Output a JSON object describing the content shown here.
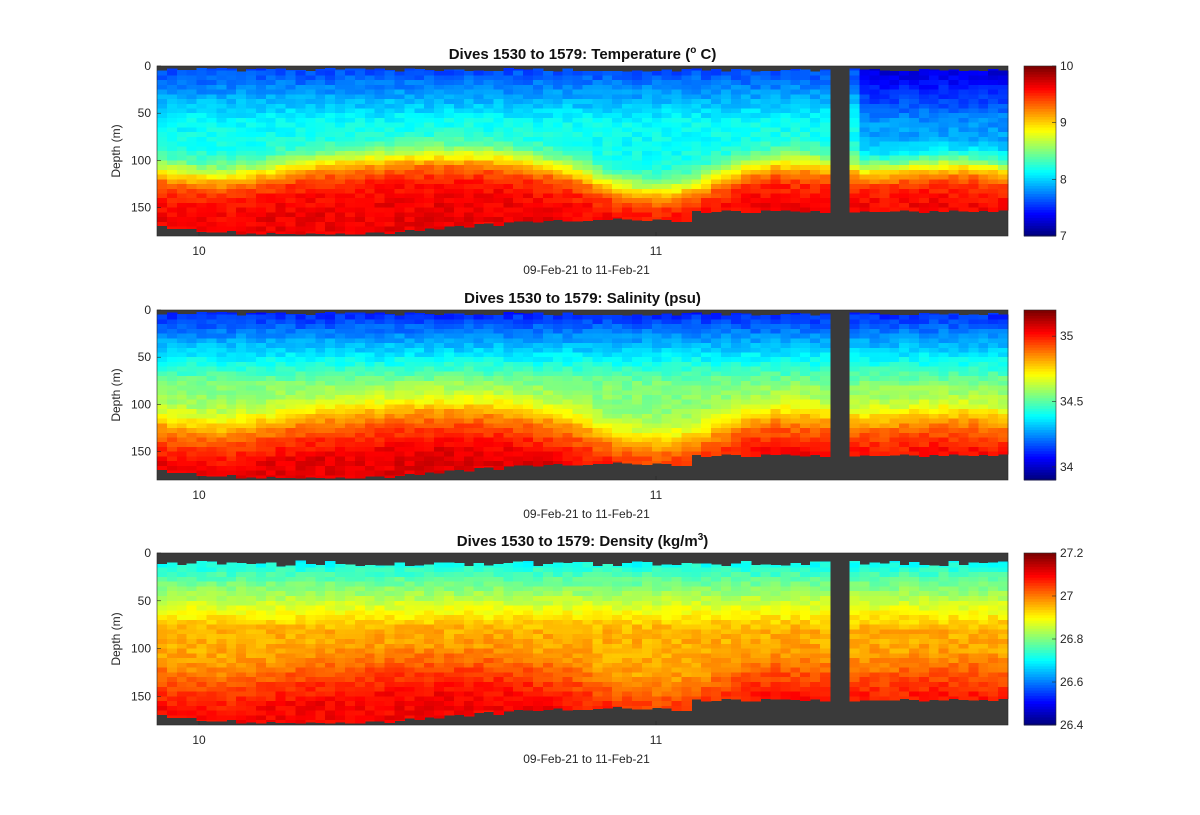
{
  "chart_data": [
    {
      "type": "heatmap",
      "title": "Dives 1530 to 1579: Temperature (",
      "title_sup": "o",
      "title_tail": " C)",
      "ylabel": "Depth (m)",
      "xlabel": "09-Feb-21 to 11-Feb-21",
      "x_ticks": [
        "10",
        "11"
      ],
      "y_ticks": [
        "0",
        "50",
        "100",
        "150"
      ],
      "ylim": [
        0,
        180
      ],
      "clim": [
        7,
        10
      ],
      "cbar_ticks": [
        "7",
        "8",
        "9",
        "10"
      ],
      "colormap": "jet",
      "seafloor_color": "#3a3a3a",
      "variable": "temperature"
    },
    {
      "type": "heatmap",
      "title": "Dives 1530 to 1579: Salinity (psu)",
      "title_sup": "",
      "title_tail": "",
      "ylabel": "Depth (m)",
      "xlabel": "09-Feb-21 to 11-Feb-21",
      "x_ticks": [
        "10",
        "11"
      ],
      "y_ticks": [
        "0",
        "50",
        "100",
        "150"
      ],
      "ylim": [
        0,
        180
      ],
      "clim": [
        33.9,
        35.2
      ],
      "cbar_ticks": [
        "34",
        "34.5",
        "35"
      ],
      "colormap": "jet",
      "seafloor_color": "#3a3a3a",
      "variable": "salinity"
    },
    {
      "type": "heatmap",
      "title": "Dives 1530 to 1579: Density (kg/m",
      "title_sup": "3",
      "title_tail": ")",
      "ylabel": "Depth (m)",
      "xlabel": "09-Feb-21 to 11-Feb-21",
      "x_ticks": [
        "10",
        "11"
      ],
      "y_ticks": [
        "0",
        "50",
        "100",
        "150"
      ],
      "ylim": [
        0,
        180
      ],
      "clim": [
        26.4,
        27.2
      ],
      "cbar_ticks": [
        "26.4",
        "26.6",
        "26.8",
        "27",
        "27.2"
      ],
      "colormap": "jet",
      "seafloor_color": "#3a3a3a",
      "variable": "density"
    }
  ]
}
